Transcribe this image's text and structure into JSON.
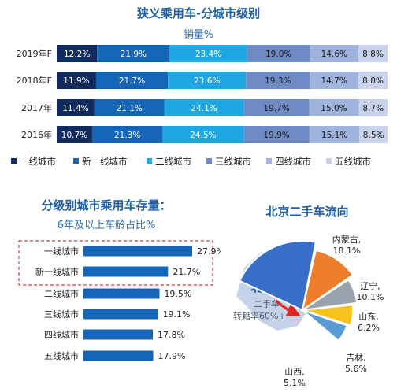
{
  "chart_data": [
    {
      "type": "bar",
      "stacked": true,
      "orientation": "horizontal",
      "title": "狭义乘用车-分城市级别",
      "subtitle": "销量%",
      "categories": [
        "2019年F",
        "2018年F",
        "2017年",
        "2016年"
      ],
      "series": [
        {
          "name": "一线城市",
          "values": [
            12.2,
            11.9,
            11.4,
            10.7
          ],
          "labels": [
            "12.2%",
            "11.9%",
            "11.4%",
            "10.7%"
          ],
          "color": "#102b5c"
        },
        {
          "name": "新一线城市",
          "values": [
            21.9,
            21.7,
            21.1,
            21.3
          ],
          "labels": [
            "21.9%",
            "21.7%",
            "21.1%",
            "21.3%"
          ],
          "color": "#1565b8"
        },
        {
          "name": "二线城市",
          "values": [
            23.4,
            23.6,
            24.1,
            24.5
          ],
          "labels": [
            "23.4%",
            "23.6%",
            "24.1%",
            "24.5%"
          ],
          "color": "#1ea7e2"
        },
        {
          "name": "三线城市",
          "values": [
            19.0,
            19.3,
            19.7,
            19.9
          ],
          "labels": [
            "19.0%",
            "19.3%",
            "19.7%",
            "19.9%"
          ],
          "color": "#6f8bc6"
        },
        {
          "name": "四线城市",
          "values": [
            14.6,
            14.7,
            15.0,
            15.1
          ],
          "labels": [
            "14.6%",
            "14.7%",
            "15.0%",
            "15.1%"
          ],
          "color": "#9fb3dc"
        },
        {
          "name": "五线城市",
          "values": [
            8.8,
            8.8,
            8.7,
            8.5
          ],
          "labels": [
            "8.8%",
            "8.8%",
            "8.7%",
            "8.5%"
          ],
          "color": "#c9d4ec"
        }
      ],
      "legend": "bottom"
    },
    {
      "type": "bar",
      "orientation": "horizontal",
      "title": "分级别城市乘用车存量：",
      "subtitle": "6年及以上车龄占比%",
      "categories": [
        "一线城市",
        "新一线城市",
        "二线城市",
        "三线城市",
        "四线城市",
        "五线城市"
      ],
      "values": [
        27.9,
        21.7,
        19.5,
        19.1,
        17.8,
        17.9
      ],
      "labels": [
        "27.9%",
        "21.7%",
        "19.5%",
        "19.1%",
        "17.8%",
        "17.9%"
      ],
      "color": "#1565b8",
      "highlight_color": "#d93a3a"
    },
    {
      "type": "pie",
      "title": "北京二手车流向",
      "categories": [
        "内蒙古",
        "辽宁",
        "山东",
        "吉林",
        "山西"
      ],
      "values": [
        18.1,
        10.1,
        6.2,
        5.6,
        5.1
      ],
      "labels": [
        "18.1%",
        "10.1%",
        "6.2%",
        "5.6%",
        "5.1%"
      ],
      "colors": [
        "#3a6fc9",
        "#ee7d2c",
        "#9aa3ad",
        "#f7c21b",
        "#5b9bd5"
      ],
      "annotation": {
        "city": "北京",
        "line1": "二手车",
        "line2": "转籍率60%+"
      }
    }
  ]
}
